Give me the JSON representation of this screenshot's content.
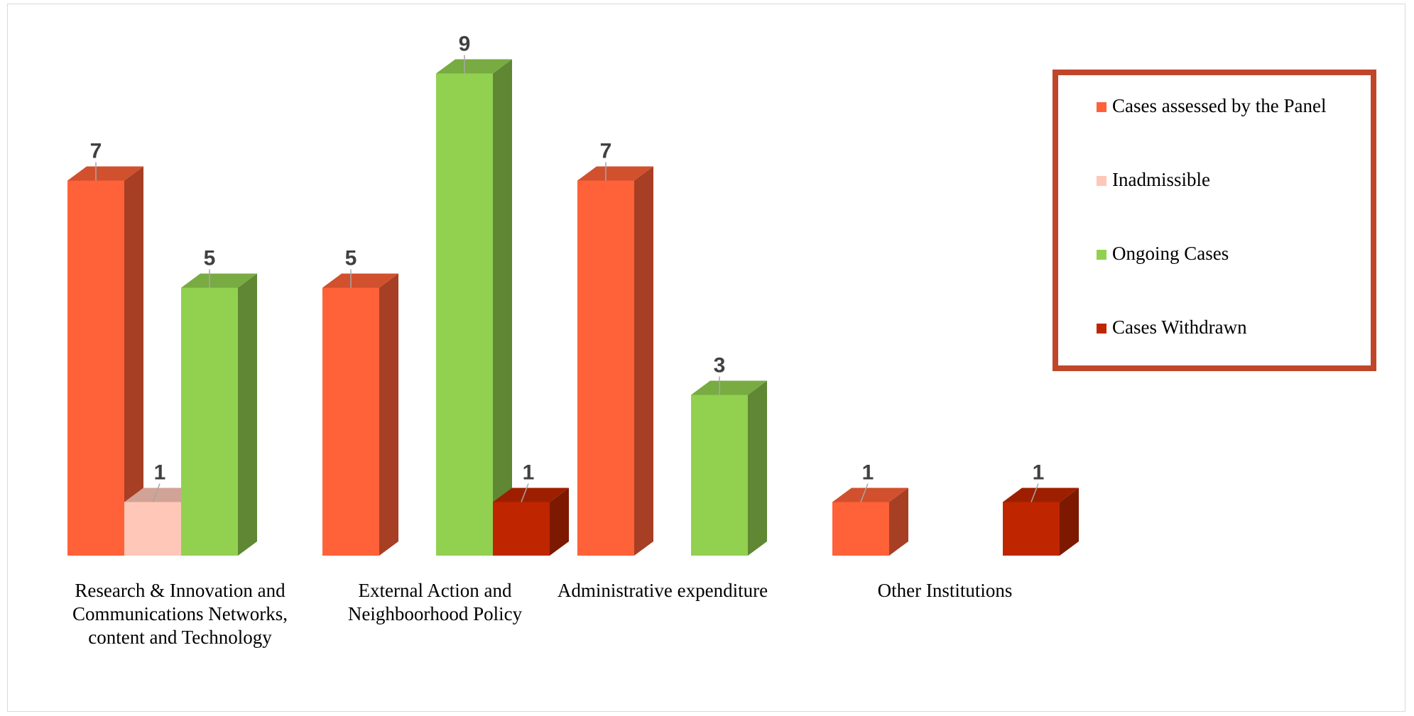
{
  "chart_data": {
    "type": "bar",
    "title": "",
    "xlabel": "",
    "ylabel": "",
    "ylim": [
      0,
      9
    ],
    "grid": false,
    "legend_position": "top-right",
    "categories": [
      [
        "Research & Innovation and",
        "Communications Networks,",
        "content and Technology"
      ],
      [
        "External Action and",
        "Neighboorhood Policy"
      ],
      [
        "Administrative expenditure"
      ],
      [
        "Other Institutions"
      ]
    ],
    "series": [
      {
        "name": "Cases assessed by the Panel",
        "color": "#FF6138",
        "values": [
          7,
          5,
          7,
          1
        ]
      },
      {
        "name": "Inadmissible",
        "color": "#FFC7B8",
        "values": [
          1,
          null,
          null,
          null
        ]
      },
      {
        "name": "Ongoing Cases",
        "color": "#92D050",
        "values": [
          5,
          9,
          3,
          null
        ]
      },
      {
        "name": "Cases Withdrawn",
        "color": "#BF2600",
        "values": [
          null,
          1,
          null,
          1
        ]
      }
    ],
    "legend_border_color": "#C0462A"
  }
}
